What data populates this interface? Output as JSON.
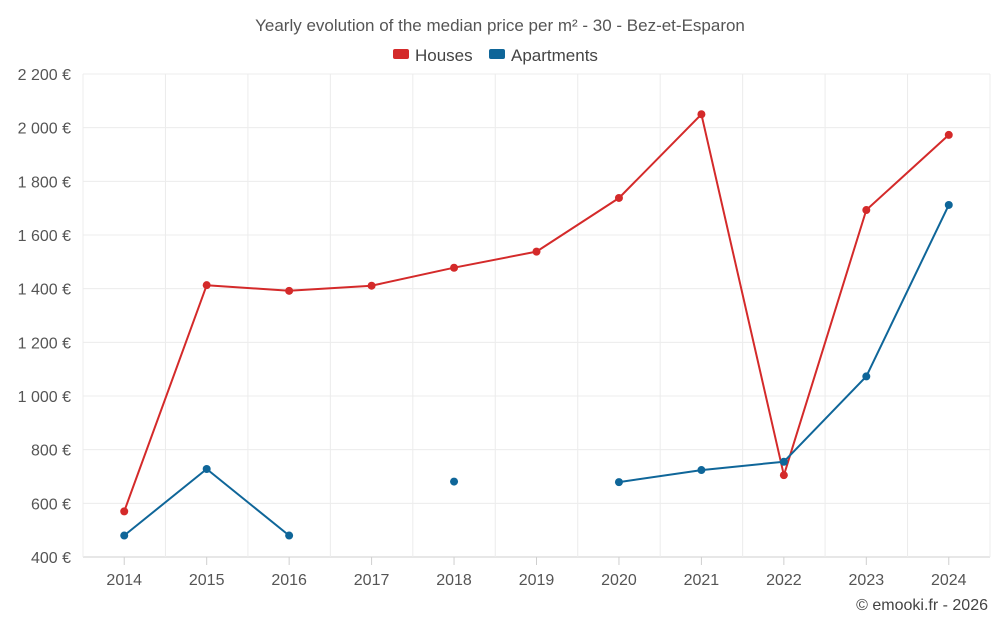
{
  "chart_data": {
    "type": "line",
    "title": "Yearly evolution of the median price per m² - 30 - Bez-et-Esparon",
    "xlabel": "",
    "ylabel": "",
    "categories": [
      "2014",
      "2015",
      "2016",
      "2017",
      "2018",
      "2019",
      "2020",
      "2021",
      "2022",
      "2023",
      "2024"
    ],
    "ylim": [
      400,
      2200
    ],
    "yticks": [
      400,
      600,
      800,
      1000,
      1200,
      1400,
      1600,
      1800,
      2000,
      2200
    ],
    "ytick_labels": [
      "400 €",
      "600 €",
      "800 €",
      "1 000 €",
      "1 200 €",
      "1 400 €",
      "1 600 €",
      "1 800 €",
      "2 000 €",
      "2 200 €"
    ],
    "grid": true,
    "legend_position": "top-center",
    "series": [
      {
        "name": "Houses",
        "color": "#d42a2a",
        "values": [
          570,
          1413,
          1392,
          1411,
          1478,
          1538,
          1738,
          2050,
          705,
          1693,
          1973
        ]
      },
      {
        "name": "Apartments",
        "color": "#0f6699",
        "values": [
          480,
          728,
          480,
          null,
          681,
          null,
          679,
          724,
          755,
          1073,
          1712
        ]
      }
    ],
    "credit": "© emooki.fr - 2026"
  }
}
